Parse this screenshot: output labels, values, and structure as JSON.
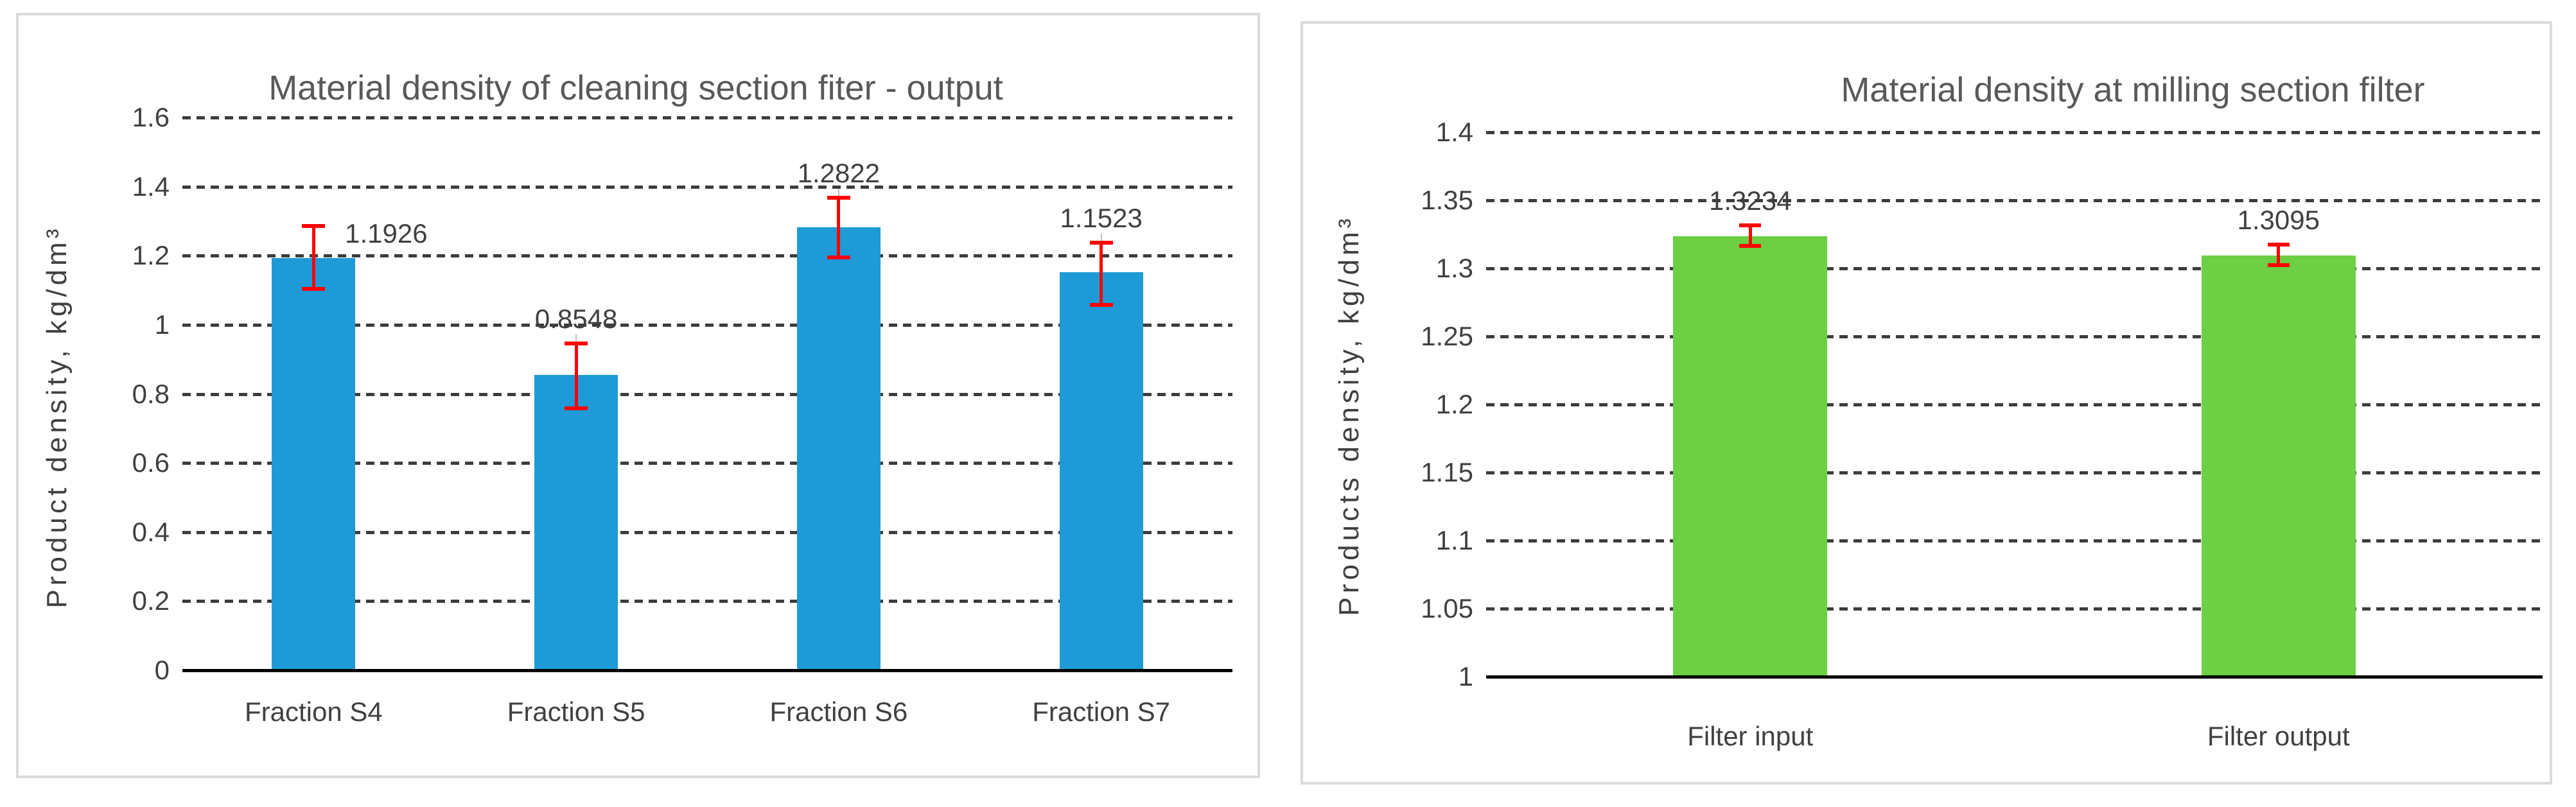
{
  "page": {
    "background": "#ffffff",
    "panel_border_color": "#DADADA"
  },
  "chart_data": [
    {
      "type": "bar",
      "title": "Material density of cleaning section fiter - output",
      "ylabel": "Product density, kg/dm³",
      "xlabel": "",
      "categories": [
        "Fraction S4",
        "Fraction S5",
        "Fraction S6",
        "Fraction S7"
      ],
      "values": [
        1.1926,
        0.8548,
        1.2822,
        1.1523
      ],
      "data_labels": [
        "1.1926",
        "0.8548",
        "1.2822",
        "1.1523"
      ],
      "error_plus": [
        0.093,
        0.092,
        0.086,
        0.086
      ],
      "error_minus": [
        0.088,
        0.097,
        0.088,
        0.095
      ],
      "ylim": [
        0,
        1.6
      ],
      "ytick_values": [
        0,
        0.2,
        0.4,
        0.6,
        0.8,
        1,
        1.2,
        1.4,
        1.6
      ],
      "ytick_labels": [
        "0",
        "0.2",
        "0.4",
        "0.6",
        "0.8",
        "1",
        "1.2",
        "1.4",
        "1.6"
      ],
      "grid": "horizontal-dashed",
      "legend": "none",
      "bar_color": "#1E9AD6",
      "error_color": "#FF0000",
      "grid_color": "#3C3C3C",
      "axis_color": "#000000",
      "text_color": "#404040",
      "title_color": "#595959"
    },
    {
      "type": "bar",
      "title": "Material density at milling section filter",
      "ylabel": "Products density, kg/dm³",
      "xlabel": "",
      "categories": [
        "Filter input",
        "Filter output"
      ],
      "values": [
        1.3234,
        1.3095
      ],
      "data_labels": [
        "1.3234",
        "1.3095"
      ],
      "error_plus": [
        0.008,
        0.008
      ],
      "error_minus": [
        0.007,
        0.007
      ],
      "ylim": [
        1,
        1.4
      ],
      "ytick_values": [
        1,
        1.05,
        1.1,
        1.15,
        1.2,
        1.25,
        1.3,
        1.35,
        1.4
      ],
      "ytick_labels": [
        "1",
        "1.05",
        "1.1",
        "1.15",
        "1.2",
        "1.25",
        "1.3",
        "1.35",
        "1.4"
      ],
      "grid": "horizontal-dashed",
      "legend": "none",
      "bar_color": "#6CCF44",
      "error_color": "#FF0000",
      "grid_color": "#3C3C3C",
      "axis_color": "#000000",
      "text_color": "#404040",
      "title_color": "#595959"
    }
  ]
}
